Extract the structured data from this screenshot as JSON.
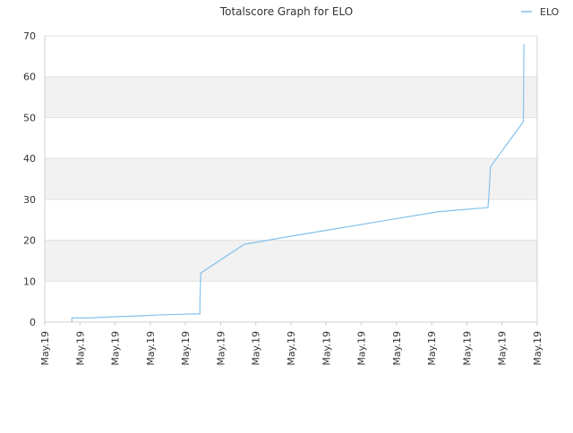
{
  "chart_data": {
    "type": "line",
    "title": "Totalscore Graph for ELO",
    "xlabel": "",
    "ylabel": "",
    "ylim": [
      0,
      70
    ],
    "yticks": [
      0,
      10,
      20,
      30,
      40,
      50,
      60,
      70
    ],
    "xtick_labels": [
      "May.19",
      "May.19",
      "May.19",
      "May.19",
      "May.19",
      "May.19",
      "May.19",
      "May.19",
      "May.19",
      "May.19",
      "May.19",
      "May.19",
      "May.19",
      "May.19",
      "May.19"
    ],
    "grid": "horizontal bands",
    "legend_position": "top-right",
    "colors": {
      "series": "#85c1ec",
      "band": "#f2f2f2",
      "grid": "#e0e0e0",
      "axis": "#d0d0d0",
      "text": "#333333"
    },
    "series": [
      {
        "name": "ELO",
        "points": [
          [
            0.055,
            0
          ],
          [
            0.055,
            1
          ],
          [
            0.09,
            1
          ],
          [
            0.14,
            1.3
          ],
          [
            0.19,
            1.5
          ],
          [
            0.24,
            1.8
          ],
          [
            0.28,
            1.9
          ],
          [
            0.3,
            2
          ],
          [
            0.315,
            2
          ],
          [
            0.315,
            5
          ],
          [
            0.317,
            12
          ],
          [
            0.405,
            19
          ],
          [
            0.5,
            21
          ],
          [
            0.6,
            23
          ],
          [
            0.7,
            25
          ],
          [
            0.8,
            27
          ],
          [
            0.9,
            28
          ],
          [
            0.902,
            31
          ],
          [
            0.905,
            38
          ],
          [
            0.972,
            49
          ],
          [
            0.973,
            68
          ]
        ]
      }
    ]
  }
}
